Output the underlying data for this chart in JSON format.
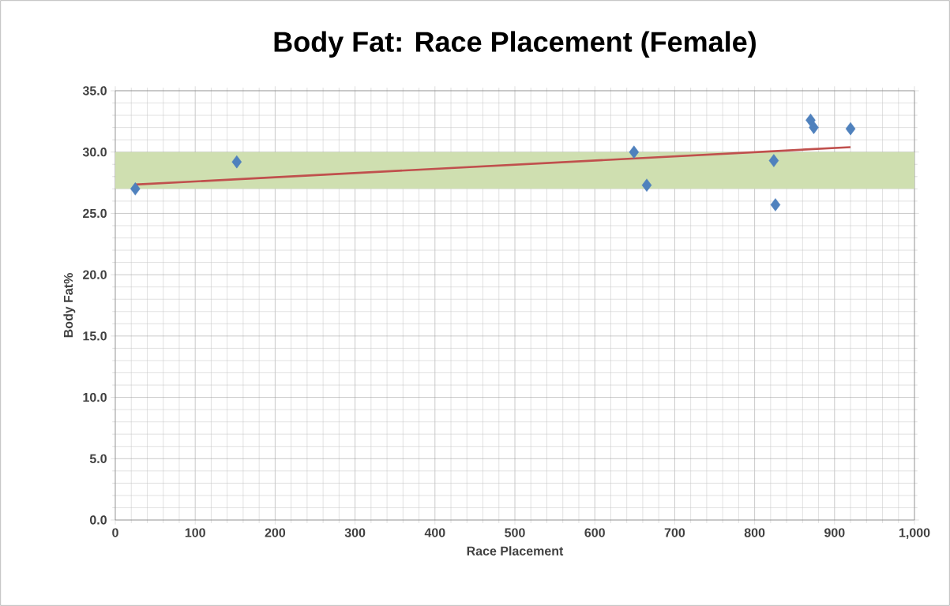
{
  "chart_data": {
    "type": "scatter",
    "title": "Body Fat: Race Placement (Female)",
    "xlabel": "Race Placement",
    "ylabel": "Body Fat%",
    "series": [
      {
        "color": "#4f81bd",
        "x": [
          25,
          152,
          649,
          665,
          824,
          826,
          870,
          874,
          920
        ],
        "values": [
          27.0,
          29.2,
          30.0,
          27.3,
          29.3,
          25.7,
          32.6,
          32.0,
          31.9
        ],
        "marker": "diamond"
      },
      {
        "type": "line",
        "color": "#c0504d",
        "x": [
          25,
          920
        ],
        "values": [
          27.35,
          30.4
        ],
        "marker": "none",
        "line_style": "solid"
      }
    ],
    "xlim": [
      0,
      1000
    ],
    "ylim": [
      0,
      35
    ],
    "xticks": [
      0,
      100,
      200,
      300,
      400,
      500,
      600,
      700,
      800,
      900,
      {
        "value": 1000,
        "label": "1,000"
      }
    ],
    "yticks": [
      {
        "value": 0,
        "label": "0.0"
      },
      {
        "value": 5,
        "label": "5.0"
      },
      {
        "value": 10,
        "label": "10.0"
      },
      {
        "value": 15,
        "label": "15.0"
      },
      {
        "value": 20,
        "label": "20.0"
      },
      {
        "value": 25,
        "label": "25.0"
      },
      {
        "value": 30,
        "label": "30.0"
      },
      {
        "value": 35,
        "label": "35.0"
      }
    ],
    "bands": [
      {
        "axis": "y",
        "from": 27,
        "to": 30,
        "color": "#cfdfb0"
      }
    ],
    "grid": true
  }
}
